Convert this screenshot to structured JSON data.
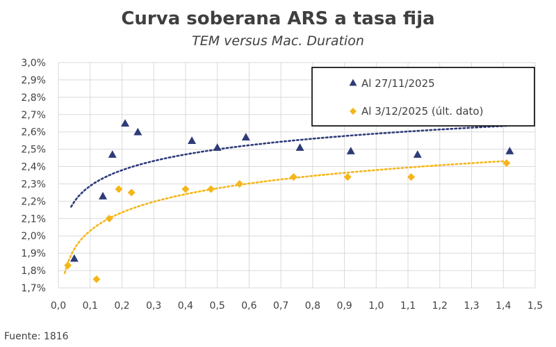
{
  "chart_data": {
    "type": "scatter",
    "title": "Curva soberana ARS a tasa fija",
    "subtitle": "TEM versus Mac. Duration",
    "source": "Fuente: 1816",
    "xlim": [
      0.0,
      1.5
    ],
    "ylim": [
      1.7,
      3.0
    ],
    "x_ticks": [
      "0,0",
      "0,1",
      "0,2",
      "0,3",
      "0,4",
      "0,5",
      "0,6",
      "0,7",
      "0,8",
      "0,9",
      "1,0",
      "1,1",
      "1,2",
      "1,3",
      "1,4",
      "1,5"
    ],
    "y_ticks": [
      "1,7%",
      "1,8%",
      "1,9%",
      "2,0%",
      "2,1%",
      "2,2%",
      "2,3%",
      "2,4%",
      "2,5%",
      "2,6%",
      "2,7%",
      "2,8%",
      "2,9%",
      "3,0%"
    ],
    "grid": true,
    "legend_position": "top-right",
    "series": [
      {
        "name": "Al 27/11/2025",
        "color": "#2e3b78",
        "marker": "triangle",
        "points": [
          {
            "x": 0.05,
            "y": 1.87
          },
          {
            "x": 0.14,
            "y": 2.23
          },
          {
            "x": 0.17,
            "y": 2.47
          },
          {
            "x": 0.21,
            "y": 2.65
          },
          {
            "x": 0.25,
            "y": 2.6
          },
          {
            "x": 0.42,
            "y": 2.55
          },
          {
            "x": 0.5,
            "y": 2.51
          },
          {
            "x": 0.59,
            "y": 2.57
          },
          {
            "x": 0.76,
            "y": 2.51
          },
          {
            "x": 0.92,
            "y": 2.49
          },
          {
            "x": 1.13,
            "y": 2.47
          },
          {
            "x": 1.42,
            "y": 2.49
          }
        ],
        "trend": {
          "kind": "log",
          "a": 2.59,
          "b": 0.131,
          "x_from": 0.04,
          "x_to": 1.42
        }
      },
      {
        "name": "Al 3/12/2025 (últ. dato)",
        "color": "#f5b61a",
        "marker": "diamond",
        "points": [
          {
            "x": 0.03,
            "y": 1.83
          },
          {
            "x": 0.12,
            "y": 1.75
          },
          {
            "x": 0.16,
            "y": 2.1
          },
          {
            "x": 0.19,
            "y": 2.27
          },
          {
            "x": 0.23,
            "y": 2.25
          },
          {
            "x": 0.4,
            "y": 2.27
          },
          {
            "x": 0.48,
            "y": 2.27
          },
          {
            "x": 0.57,
            "y": 2.3
          },
          {
            "x": 0.74,
            "y": 2.34
          },
          {
            "x": 0.91,
            "y": 2.34
          },
          {
            "x": 1.11,
            "y": 2.34
          },
          {
            "x": 1.41,
            "y": 2.42
          }
        ],
        "trend": {
          "kind": "log",
          "a": 2.38,
          "b": 0.152,
          "x_from": 0.02,
          "x_to": 1.4
        }
      }
    ]
  }
}
